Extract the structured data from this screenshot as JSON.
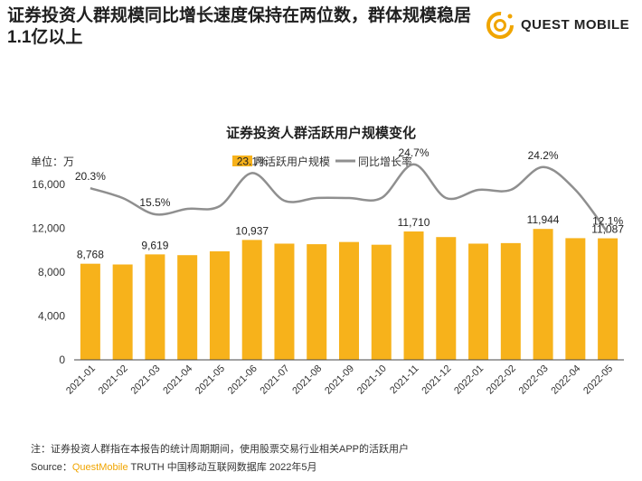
{
  "headline": "证券投资人群规模同比增长速度保持在两位数，群体规模稳居1.1亿以上",
  "logo": {
    "text": "QUEST MOBILE",
    "icon": "questmobile-logo-icon"
  },
  "footnote": "注：证券投资人群指在本报告的统计周期期间，使用股票交易行业相关APP的活跃用户",
  "source": {
    "prefix": "Source：",
    "brand": "QuestMobile",
    "rest": " TRUTH 中国移动互联网数据库 2022年5月"
  },
  "colors": {
    "bar": "#f7b21b",
    "line": "#8f8f8f",
    "brand": "#f0a500"
  },
  "chart_data": {
    "type": "bar",
    "title": "证券投资人群活跃用户规模变化",
    "unit_label": "单位：万",
    "categories": [
      "2021-01",
      "2021-02",
      "2021-03",
      "2021-04",
      "2021-05",
      "2021-06",
      "2021-07",
      "2021-08",
      "2021-09",
      "2021-10",
      "2021-11",
      "2021-12",
      "2022-01",
      "2022-02",
      "2022-03",
      "2022-04",
      "2022-05"
    ],
    "series": [
      {
        "name": "月活跃用户规模",
        "type": "bar",
        "values": [
          8768,
          8700,
          9619,
          9550,
          9900,
          10937,
          10600,
          10550,
          10750,
          10500,
          11710,
          11200,
          10600,
          10650,
          11944,
          11100,
          11087
        ],
        "labels": [
          "8,768",
          "",
          "9,619",
          "",
          "",
          "10,937",
          "",
          "",
          "",
          "",
          "11,710",
          "",
          "",
          "",
          "11,944",
          "",
          "11,087"
        ]
      },
      {
        "name": "同比增长率",
        "type": "line",
        "values": [
          20.3,
          18.5,
          15.5,
          16.5,
          17.0,
          23.1,
          18.0,
          18.5,
          18.5,
          18.5,
          24.7,
          18.5,
          20.0,
          20.0,
          24.2,
          20.0,
          12.1
        ],
        "labels": [
          "20.3%",
          "",
          "15.5%",
          "",
          "",
          "23.1%",
          "",
          "",
          "",
          "",
          "24.7%",
          "",
          "",
          "",
          "24.2%",
          "",
          "12.1%"
        ]
      }
    ],
    "y_ticks": [
      "0",
      "4,000",
      "8,000",
      "12,000",
      "16,000"
    ],
    "ylim": [
      0,
      16000
    ],
    "legend_position": "top-center",
    "grid": false
  }
}
